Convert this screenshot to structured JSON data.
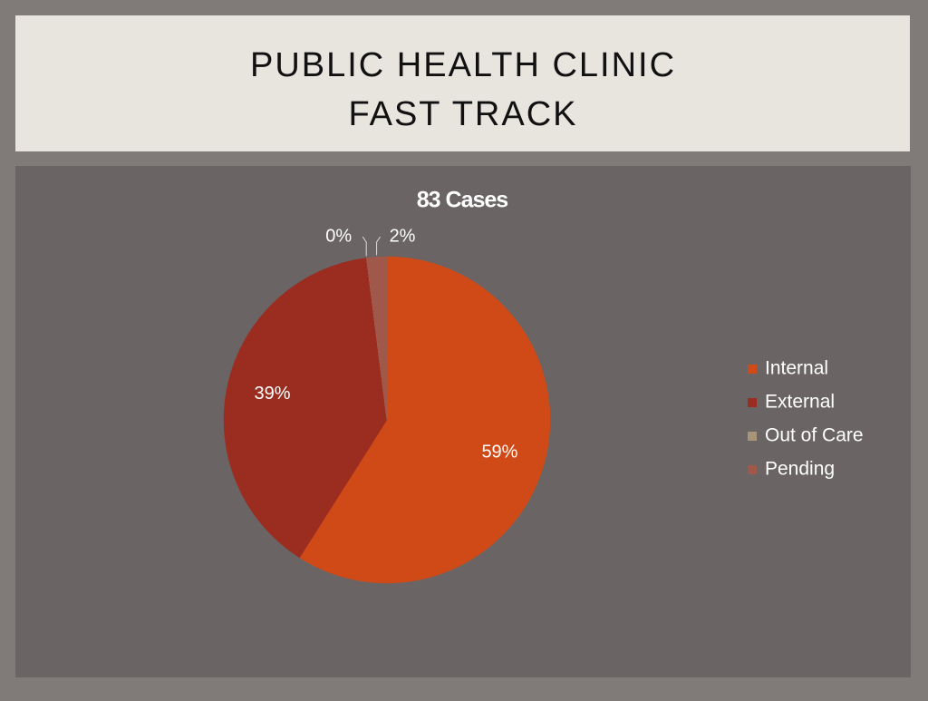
{
  "header": {
    "title_lines": [
      "PUBLIC HEALTH CLINIC",
      "FAST TRACK"
    ]
  },
  "chart_data": {
    "type": "pie",
    "title": "83 Cases",
    "categories": [
      "Internal",
      "External",
      "Out of Care",
      "Pending"
    ],
    "values": [
      59,
      39,
      0,
      2
    ],
    "value_labels": [
      "59%",
      "39%",
      "0%",
      "2%"
    ],
    "colors": [
      "#d04a18",
      "#9b2d20",
      "#a89478",
      "#a0584a"
    ],
    "legend": "right"
  }
}
